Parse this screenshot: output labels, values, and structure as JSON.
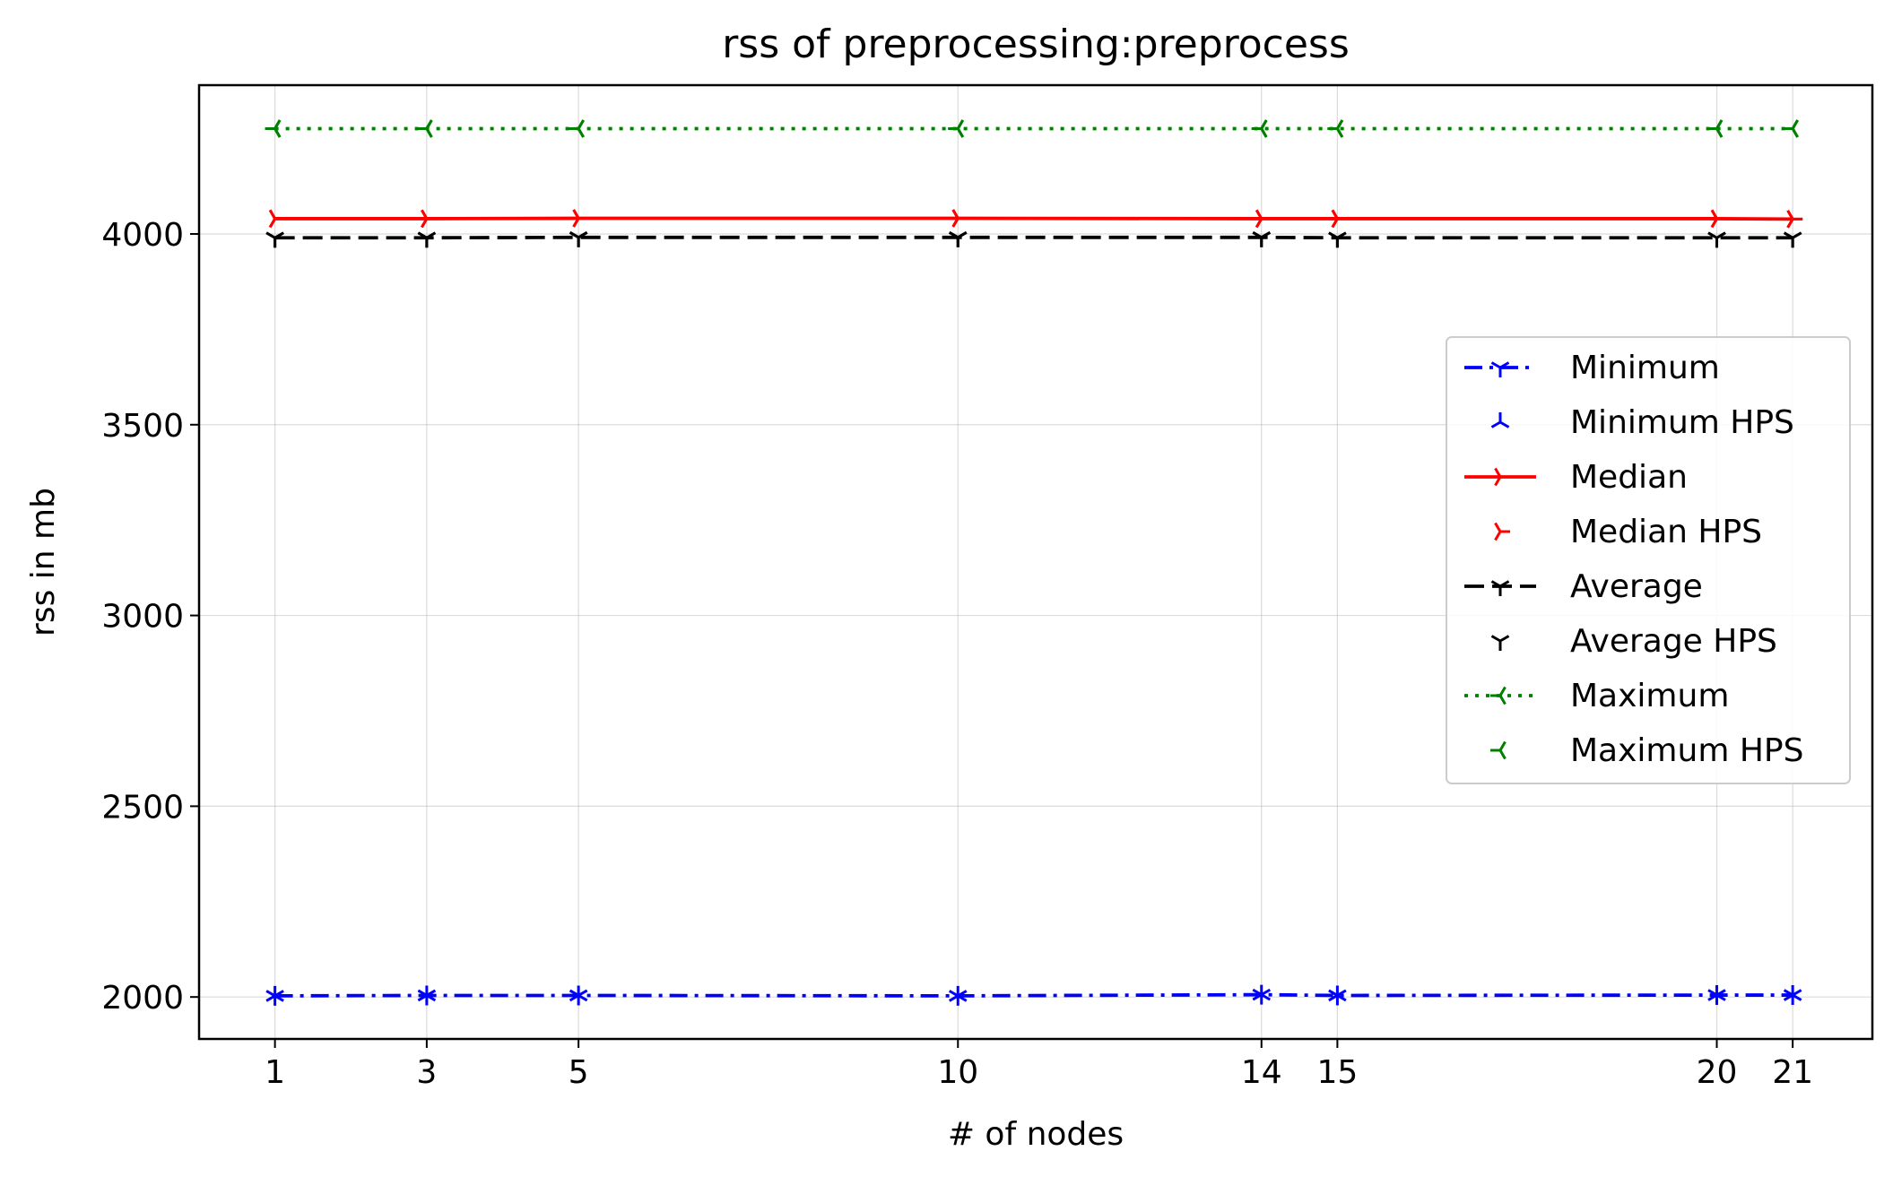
{
  "chart_data": {
    "type": "line",
    "title": "rss of preprocessing:preprocess",
    "xlabel": "# of nodes",
    "ylabel": "rss in mb",
    "x": [
      1,
      3,
      5,
      10,
      14,
      15,
      20,
      21
    ],
    "x_tick_labels": [
      "1",
      "3",
      "5",
      "10",
      "14",
      "15",
      "20",
      "21"
    ],
    "xlim": [
      0,
      22.05
    ],
    "ylim": [
      1890,
      4390
    ],
    "y_ticks": [
      2000,
      2500,
      3000,
      3500,
      4000
    ],
    "y_tick_labels": [
      "2000",
      "2500",
      "3000",
      "3500",
      "4000"
    ],
    "grid": true,
    "legend_position": "right",
    "series": [
      {
        "name": "Minimum",
        "color": "#0000ff",
        "dash": "dashdot",
        "marker": "tri_down",
        "values": [
          2003,
          2004,
          2004,
          2003,
          2006,
          2004,
          2005,
          2005
        ]
      },
      {
        "name": "Minimum HPS",
        "color": "#0000ff",
        "marker": "tri_up",
        "markers_only": true,
        "values": [
          2003,
          2004,
          2004,
          2003,
          2006,
          2004,
          2005,
          2005
        ]
      },
      {
        "name": "Median",
        "color": "#ff0000",
        "dash": "solid",
        "marker": "tri_right",
        "values": [
          4040,
          4040,
          4041,
          4041,
          4040,
          4040,
          4040,
          4039
        ]
      },
      {
        "name": "Median HPS",
        "color": "#ff0000",
        "marker": "tri_right",
        "markers_only": true,
        "values": [
          4040,
          4040,
          4041,
          4041,
          4040,
          4040,
          4040,
          4039
        ]
      },
      {
        "name": "Average",
        "color": "#000000",
        "dash": "dashed",
        "marker": "tri_down",
        "values": [
          3990,
          3990,
          3991,
          3991,
          3991,
          3990,
          3990,
          3990
        ]
      },
      {
        "name": "Average HPS",
        "color": "#000000",
        "marker": "tri_down",
        "markers_only": true,
        "values": [
          3990,
          3990,
          3991,
          3991,
          3991,
          3990,
          3990,
          3990
        ]
      },
      {
        "name": "Maximum",
        "color": "#008000",
        "dash": "dotted",
        "marker": "tri_left",
        "values": [
          4276,
          4276,
          4276,
          4276,
          4276,
          4276,
          4276,
          4276
        ]
      },
      {
        "name": "Maximum HPS",
        "color": "#008000",
        "marker": "tri_left",
        "markers_only": true,
        "values": [
          4276,
          4276,
          4276,
          4276,
          4276,
          4276,
          4276,
          4276
        ]
      }
    ]
  }
}
